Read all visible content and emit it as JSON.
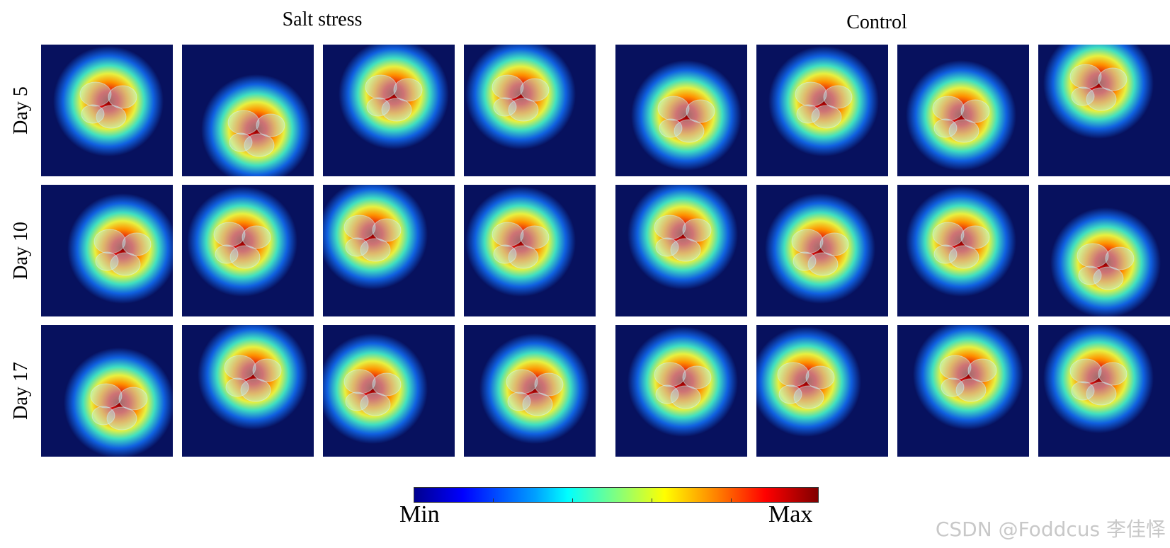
{
  "groups": [
    {
      "title": "Salt stress"
    },
    {
      "title": "Control"
    }
  ],
  "rows": [
    {
      "label": "Day 5"
    },
    {
      "label": "Day 10"
    },
    {
      "label": "Day 17"
    }
  ],
  "colorbar": {
    "min_label": "Min",
    "max_label": "Max",
    "colormap": "jet",
    "colors": [
      "#00008f",
      "#0000ff",
      "#00a0ff",
      "#00ffff",
      "#80ff80",
      "#ffff00",
      "#ff8000",
      "#ff0000",
      "#800000"
    ]
  },
  "watermark": "CSDN @Foddcus 李佳怿"
}
